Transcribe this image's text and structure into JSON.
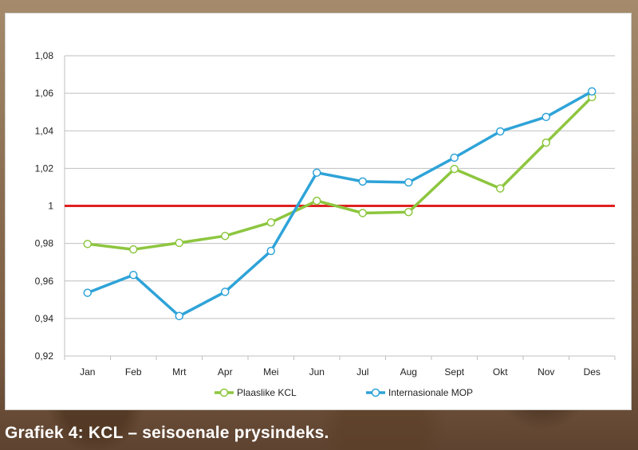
{
  "caption": "Grafiek 4: KCL – seisoenale prysindeks.",
  "chart_data": {
    "type": "line",
    "categories": [
      "Jan",
      "Feb",
      "Mrt",
      "Apr",
      "Mei",
      "Jun",
      "Jul",
      "Aug",
      "Sept",
      "Okt",
      "Nov",
      "Des"
    ],
    "series": [
      {
        "name": "Plaaslike KCL",
        "color": "#8dc63f",
        "values": [
          0.9797,
          0.9768,
          0.9803,
          0.984,
          0.9912,
          1.0027,
          0.9962,
          0.9967,
          1.0197,
          1.0093,
          1.0337,
          1.058
        ]
      },
      {
        "name": "Internasionale MOP",
        "color": "#2ea3d8",
        "values": [
          0.9537,
          0.9632,
          0.9413,
          0.9542,
          0.976,
          1.0177,
          1.013,
          1.0125,
          1.0257,
          1.0397,
          1.0474,
          1.061
        ]
      }
    ],
    "reference_line": {
      "value": 1,
      "color": "#e02020"
    },
    "ylim": [
      0.92,
      1.08
    ],
    "yticks": [
      "0,92",
      "0,94",
      "0,96",
      "0,98",
      "1",
      "1,02",
      "1,04",
      "1,06",
      "1,08"
    ],
    "ytick_values": [
      0.92,
      0.94,
      0.96,
      0.98,
      1.0,
      1.02,
      1.04,
      1.06,
      1.08
    ],
    "grid": true,
    "legend_position": "bottom",
    "title": "",
    "xlabel": "",
    "ylabel": ""
  }
}
